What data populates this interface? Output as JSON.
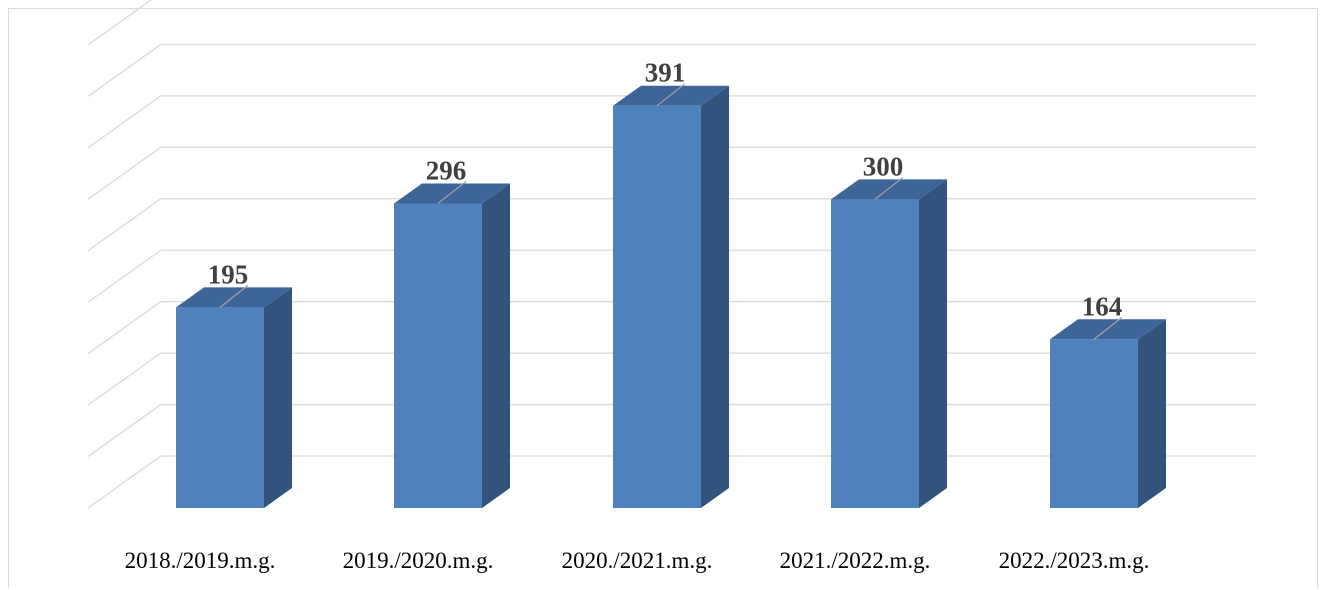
{
  "chart_data": {
    "type": "bar",
    "categories": [
      "2018./2019.m.g.",
      "2019./2020.m.g.",
      "2020./2021.m.g.",
      "2021./2022.m.g.",
      "2022./2023.m.g."
    ],
    "values": [
      195,
      296,
      391,
      300,
      164
    ],
    "value_labels": [
      "195",
      "296",
      "391",
      "300",
      "164"
    ],
    "ylim": [
      0,
      450
    ],
    "gridlines": 9,
    "grid": true,
    "three_d": true,
    "colors": {
      "front": "#4f81bd",
      "side": "#32547c",
      "top": "#3d6598",
      "grid": "#d9d9d9",
      "label": "#404040"
    }
  }
}
